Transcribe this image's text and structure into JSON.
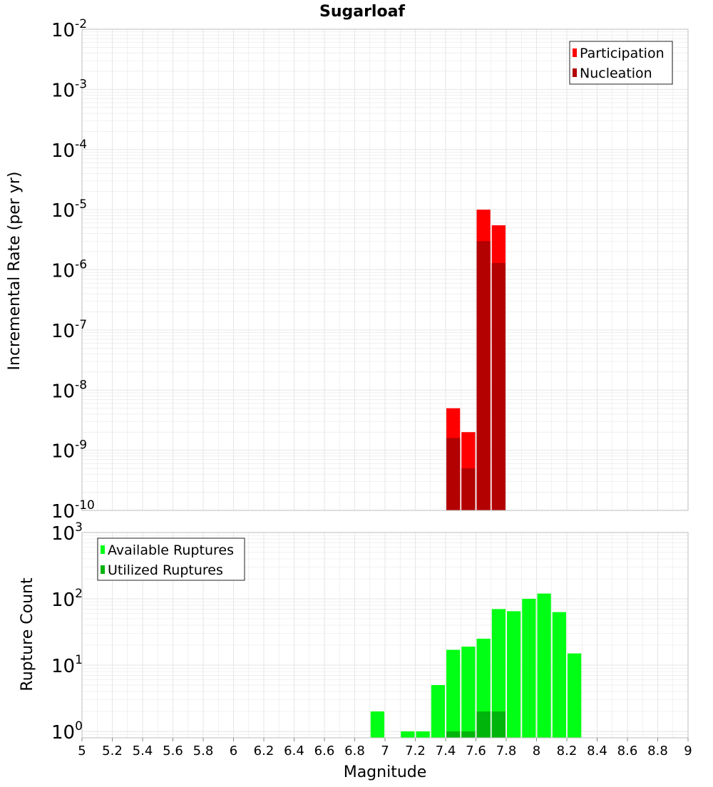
{
  "title": "Sugarloaf",
  "colors": {
    "participation": "#ff0000",
    "nucleation": "#b30000",
    "available": "#00ff14",
    "utilized": "#00b40c",
    "grid": "#e6e6e6",
    "frame": "#bdbdbd"
  },
  "chart_data": [
    {
      "type": "bar",
      "title": "Sugarloaf",
      "xlabel": "Magnitude",
      "ylabel": "Incremental Rate (per yr)",
      "yscale": "log",
      "xlim": [
        5,
        9
      ],
      "ylim": [
        1e-10,
        0.01
      ],
      "y_tick_exponents": [
        "-2",
        "-3",
        "-4",
        "-5",
        "-6",
        "-7",
        "-8",
        "-9",
        "-10"
      ],
      "y_tick_base": "10",
      "legend": {
        "placement": "top-right",
        "entries": [
          "Participation",
          "Nucleation"
        ]
      },
      "bin_width": 0.1,
      "series": [
        {
          "name": "Participation",
          "x": [
            7.45,
            7.55,
            7.65,
            7.75
          ],
          "values": [
            5e-09,
            2e-09,
            1e-05,
            5.5e-06
          ]
        },
        {
          "name": "Nucleation",
          "x": [
            7.45,
            7.55,
            7.65,
            7.75
          ],
          "values": [
            1.6e-09,
            5e-10,
            3e-06,
            1.3e-06
          ]
        }
      ]
    },
    {
      "type": "bar",
      "xlabel": "Magnitude",
      "ylabel": "Rupture Count",
      "yscale": "log",
      "xlim": [
        5,
        9
      ],
      "ylim": [
        0.8,
        1000
      ],
      "y_tick_exponents": [
        "3",
        "2",
        "1",
        "0"
      ],
      "y_tick_base": "10",
      "x_ticks": [
        "5",
        "5.2",
        "5.4",
        "5.6",
        "5.8",
        "6",
        "6.2",
        "6.4",
        "6.6",
        "6.8",
        "7",
        "7.2",
        "7.4",
        "7.6",
        "7.8",
        "8",
        "8.2",
        "8.4",
        "8.6",
        "8.8",
        "9"
      ],
      "legend": {
        "placement": "top-left",
        "entries": [
          "Available Ruptures",
          "Utilized Ruptures"
        ]
      },
      "bin_width": 0.1,
      "series": [
        {
          "name": "Available Ruptures",
          "x": [
            6.95,
            7.15,
            7.25,
            7.35,
            7.45,
            7.55,
            7.65,
            7.75,
            7.85,
            7.95,
            8.05,
            8.15,
            8.25
          ],
          "values": [
            2,
            1,
            1,
            5,
            17,
            19,
            25,
            70,
            65,
            100,
            120,
            63,
            15
          ]
        },
        {
          "name": "Utilized Ruptures",
          "x": [
            7.45,
            7.55,
            7.65,
            7.75
          ],
          "values": [
            1,
            1,
            2,
            2
          ]
        }
      ]
    }
  ]
}
